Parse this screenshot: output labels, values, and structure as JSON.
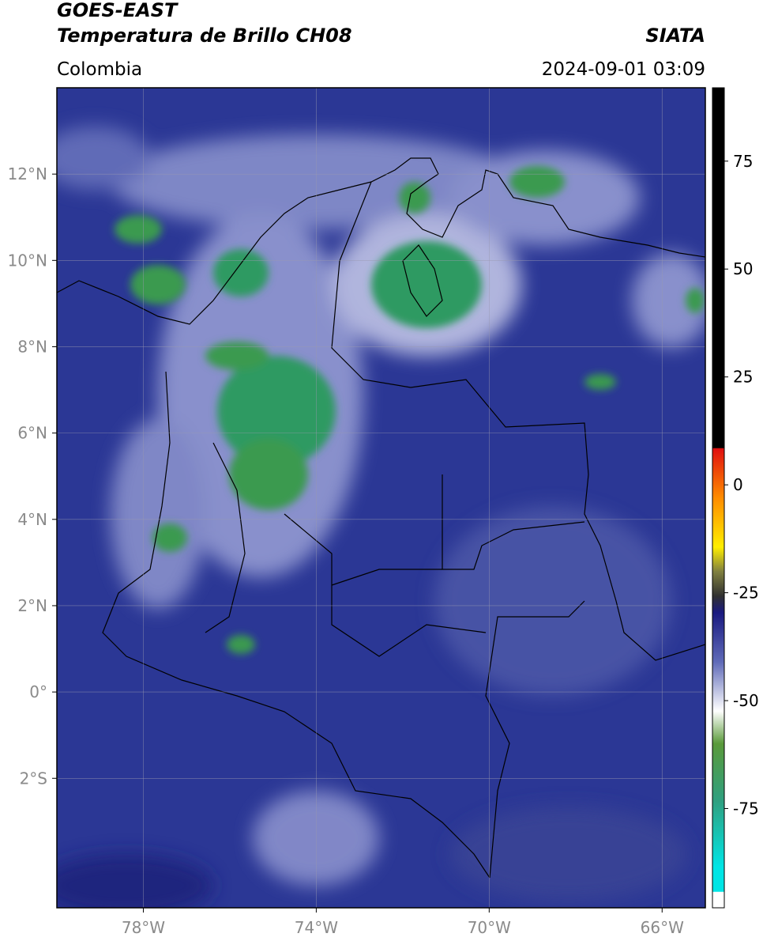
{
  "header": {
    "title": "GOES-EAST",
    "subtitle": "Temperatura de Brillo CH08",
    "source": "SIATA",
    "region": "Colombia",
    "timestamp": "2024-09-01 03:09"
  },
  "map": {
    "lon_range": [
      -80,
      -65
    ],
    "lat_range": [
      -5,
      14
    ],
    "lon_ticks": [
      {
        "value": -78,
        "label": "78°W"
      },
      {
        "value": -74,
        "label": "74°W"
      },
      {
        "value": -70,
        "label": "70°W"
      },
      {
        "value": -66,
        "label": "66°W"
      }
    ],
    "lat_ticks": [
      {
        "value": 12,
        "label": "12°N"
      },
      {
        "value": 10,
        "label": "10°N"
      },
      {
        "value": 8,
        "label": "8°N"
      },
      {
        "value": 6,
        "label": "6°N"
      },
      {
        "value": 4,
        "label": "4°N"
      },
      {
        "value": 2,
        "label": "2°N"
      },
      {
        "value": 0,
        "label": "0°"
      },
      {
        "value": -2,
        "label": "2°S"
      }
    ]
  },
  "colorbar": {
    "range": [
      -98,
      92
    ],
    "ticks": [
      75,
      50,
      25,
      0,
      -25,
      -50,
      -75
    ]
  }
}
